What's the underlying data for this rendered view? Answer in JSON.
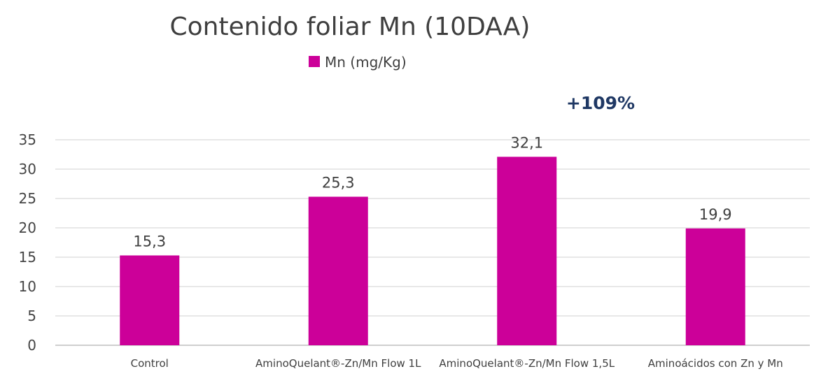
{
  "chart_data": {
    "type": "bar",
    "title": "Contenido foliar Mn (10DAA)",
    "categories": [
      "Control",
      "AminoQuelant®-Zn/Mn Flow 1L",
      "AminoQuelant®-Zn/Mn Flow  1,5L",
      "Aminoácidos con Zn y Mn"
    ],
    "series": [
      {
        "name": "Mn (mg/Kg)",
        "values": [
          15.3,
          25.3,
          32.1,
          19.9
        ],
        "color": "#cc0099"
      }
    ],
    "data_labels": [
      "15,3",
      "25,3",
      "32,1",
      "19,9"
    ],
    "yticks": [
      0,
      5,
      10,
      15,
      20,
      25,
      30,
      35
    ],
    "ylim": [
      0,
      35
    ],
    "xlabel": "",
    "ylabel": "",
    "grid": true,
    "legend": "top-center",
    "annotation": "+109%",
    "annotation_color": "#1f3864"
  }
}
